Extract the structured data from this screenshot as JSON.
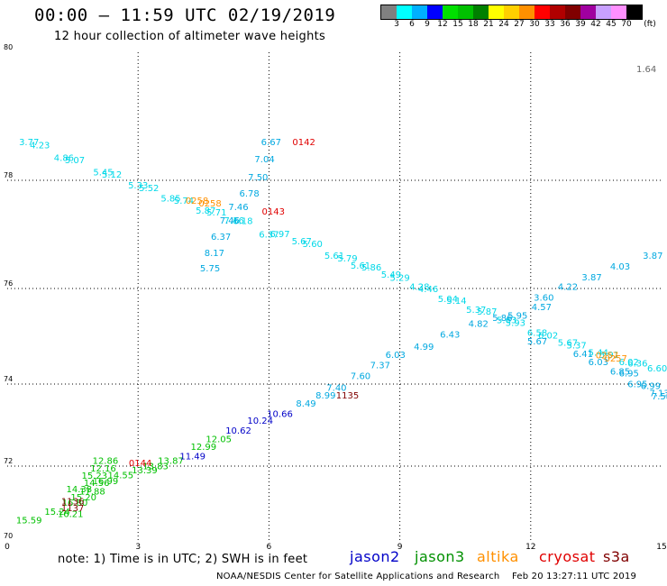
{
  "header": {
    "title": "00:00 – 11:59 UTC 02/19/2019",
    "subtitle": "12 hour collection of altimeter wave heights"
  },
  "legend": {
    "unit": "(ft)",
    "colors": [
      "#808080",
      "#00ffff",
      "#00b0ff",
      "#0000ff",
      "#00e000",
      "#00c000",
      "#008000",
      "#ffff00",
      "#ffd000",
      "#ff9000",
      "#ff0000",
      "#b00000",
      "#800000",
      "#a000a0",
      "#c8a0ff",
      "#ff90ff",
      "#000000"
    ],
    "labels": [
      "3",
      "6",
      "9",
      "12",
      "15",
      "18",
      "21",
      "24",
      "27",
      "30",
      "33",
      "36",
      "39",
      "42",
      "45",
      "70"
    ]
  },
  "corner_value": "1.64",
  "chart_data": {
    "type": "scatter",
    "title": "12 hour collection of altimeter wave heights",
    "xlabel": "",
    "ylabel": "",
    "xlim": [
      0,
      15
    ],
    "ylim": [
      70,
      80
    ],
    "x_ticks": [
      "0",
      "3",
      "6",
      "9",
      "12",
      "15"
    ],
    "y_ticks": [
      "70",
      "72",
      "74",
      "76",
      "78",
      "80"
    ],
    "grid": true,
    "satellites": [
      {
        "name": "jason2",
        "color": "#0000c8"
      },
      {
        "name": "jason3",
        "color": "#009000"
      },
      {
        "name": "altika",
        "color": "#ff9000"
      },
      {
        "name": "cryosat",
        "color": "#e00000"
      },
      {
        "name": "s3a",
        "color": "#800000"
      }
    ],
    "wave_labels": [
      {
        "x": 0.5,
        "y": 78.55,
        "text": "3.77",
        "color": "#00d8e8"
      },
      {
        "x": 0.75,
        "y": 78.5,
        "text": "4.23",
        "color": "#00d8e8"
      },
      {
        "x": 1.3,
        "y": 78.3,
        "text": "4.86",
        "color": "#00d8e8"
      },
      {
        "x": 1.55,
        "y": 78.27,
        "text": "5.07",
        "color": "#00d8e8"
      },
      {
        "x": 2.2,
        "y": 78.08,
        "text": "5.45",
        "color": "#00d8e8"
      },
      {
        "x": 2.4,
        "y": 78.04,
        "text": "5.12",
        "color": "#00d8e8"
      },
      {
        "x": 3.0,
        "y": 77.85,
        "text": "5.33",
        "color": "#00d8e8"
      },
      {
        "x": 3.25,
        "y": 77.8,
        "text": "5.52",
        "color": "#00d8e8"
      },
      {
        "x": 3.75,
        "y": 77.61,
        "text": "5.85",
        "color": "#00d8e8"
      },
      {
        "x": 4.05,
        "y": 77.57,
        "text": "5.74",
        "color": "#00d8e8"
      },
      {
        "x": 4.55,
        "y": 77.38,
        "text": "5.87",
        "color": "#00d8e8"
      },
      {
        "x": 4.8,
        "y": 77.35,
        "text": "5.71",
        "color": "#00d8e8"
      },
      {
        "x": 5.2,
        "y": 77.2,
        "text": "7.16",
        "color": "#00d8e8"
      },
      {
        "x": 5.4,
        "y": 77.19,
        "text": "6.18",
        "color": "#00d8e8"
      },
      {
        "x": 6.0,
        "y": 76.94,
        "text": "6.37",
        "color": "#00d8e8"
      },
      {
        "x": 6.25,
        "y": 76.95,
        "text": "6.97",
        "color": "#00d8e8"
      },
      {
        "x": 6.75,
        "y": 76.82,
        "text": "5.67",
        "color": "#00d8e8"
      },
      {
        "x": 7.0,
        "y": 76.77,
        "text": "5.60",
        "color": "#00d8e8"
      },
      {
        "x": 7.5,
        "y": 76.55,
        "text": "5.61",
        "color": "#00d8e8"
      },
      {
        "x": 7.8,
        "y": 76.5,
        "text": "5.79",
        "color": "#00d8e8"
      },
      {
        "x": 8.1,
        "y": 76.37,
        "text": "5.61",
        "color": "#00d8e8"
      },
      {
        "x": 8.35,
        "y": 76.33,
        "text": "5.86",
        "color": "#00d8e8"
      },
      {
        "x": 8.8,
        "y": 76.2,
        "text": "5.49",
        "color": "#00d8e8"
      },
      {
        "x": 9.0,
        "y": 76.14,
        "text": "5.29",
        "color": "#00d8e8"
      },
      {
        "x": 9.45,
        "y": 75.97,
        "text": "4.28",
        "color": "#00d8e8"
      },
      {
        "x": 9.65,
        "y": 75.92,
        "text": "4.46",
        "color": "#00d8e8"
      },
      {
        "x": 10.1,
        "y": 75.72,
        "text": "5.04",
        "color": "#00d8e8"
      },
      {
        "x": 10.3,
        "y": 75.68,
        "text": "5.14",
        "color": "#00d8e8"
      },
      {
        "x": 10.75,
        "y": 75.49,
        "text": "5.37",
        "color": "#00d8e8"
      },
      {
        "x": 11.0,
        "y": 75.45,
        "text": "5.87",
        "color": "#00d8e8"
      },
      {
        "x": 11.45,
        "y": 75.27,
        "text": "5.63",
        "color": "#00d8e8"
      },
      {
        "x": 11.65,
        "y": 75.22,
        "text": "5.93",
        "color": "#00d8e8"
      },
      {
        "x": 12.15,
        "y": 75.01,
        "text": "6.58",
        "color": "#00d8e8"
      },
      {
        "x": 12.4,
        "y": 74.95,
        "text": "6.02",
        "color": "#00d8e8"
      },
      {
        "x": 12.85,
        "y": 74.8,
        "text": "5.67",
        "color": "#00d8e8"
      },
      {
        "x": 13.05,
        "y": 74.75,
        "text": "5.37",
        "color": "#00d8e8"
      },
      {
        "x": 13.55,
        "y": 74.59,
        "text": "5.44",
        "color": "#00d8e8"
      },
      {
        "x": 13.8,
        "y": 74.55,
        "text": "5.91",
        "color": "#00d8e8"
      },
      {
        "x": 14.25,
        "y": 74.4,
        "text": "6.02",
        "color": "#00d8e8"
      },
      {
        "x": 14.45,
        "y": 74.37,
        "text": "6.36",
        "color": "#00d8e8"
      },
      {
        "x": 14.9,
        "y": 74.26,
        "text": "6.60",
        "color": "#00d8e8"
      },
      {
        "x": 0.5,
        "y": 70.47,
        "text": "15.59",
        "color": "#00c000"
      },
      {
        "x": 1.15,
        "y": 70.7,
        "text": "15.24",
        "color": "#00c000"
      },
      {
        "x": 1.45,
        "y": 70.64,
        "text": "16.21",
        "color": "#00c000"
      },
      {
        "x": 1.55,
        "y": 70.94,
        "text": "16.80",
        "color": "#00c000"
      },
      {
        "x": 1.75,
        "y": 71.09,
        "text": "15.20",
        "color": "#00c000"
      },
      {
        "x": 1.65,
        "y": 71.3,
        "text": "14.38",
        "color": "#00c000"
      },
      {
        "x": 1.95,
        "y": 71.24,
        "text": "17.88",
        "color": "#00c000"
      },
      {
        "x": 2.05,
        "y": 71.47,
        "text": "14.56",
        "color": "#00c000"
      },
      {
        "x": 2.25,
        "y": 71.52,
        "text": "16.99",
        "color": "#00c000"
      },
      {
        "x": 2.0,
        "y": 71.66,
        "text": "15.23",
        "color": "#00c000"
      },
      {
        "x": 2.2,
        "y": 71.86,
        "text": "12.16",
        "color": "#00c000"
      },
      {
        "x": 2.25,
        "y": 72.05,
        "text": "12.86",
        "color": "#00c000"
      },
      {
        "x": 2.6,
        "y": 71.67,
        "text": "14.55",
        "color": "#00c000"
      },
      {
        "x": 3.15,
        "y": 71.81,
        "text": "13.39",
        "color": "#00c000"
      },
      {
        "x": 3.4,
        "y": 71.92,
        "text": "13.83",
        "color": "#00c000"
      },
      {
        "x": 3.75,
        "y": 72.06,
        "text": "13.87",
        "color": "#00c000"
      },
      {
        "x": 4.5,
        "y": 72.4,
        "text": "12.99",
        "color": "#00c000"
      },
      {
        "x": 4.85,
        "y": 72.58,
        "text": "12.05",
        "color": "#00c000"
      },
      {
        "x": 4.25,
        "y": 72.16,
        "text": "11.49",
        "color": "#0000c8"
      },
      {
        "x": 5.3,
        "y": 72.79,
        "text": "10.62",
        "color": "#0000c8"
      },
      {
        "x": 5.8,
        "y": 73.03,
        "text": "10.24",
        "color": "#0000c8"
      },
      {
        "x": 6.25,
        "y": 73.2,
        "text": "10.66",
        "color": "#0000c8"
      },
      {
        "x": 6.85,
        "y": 73.45,
        "text": "8.49",
        "color": "#00a8e0"
      },
      {
        "x": 7.3,
        "y": 73.65,
        "text": "8.99",
        "color": "#00a8e0"
      },
      {
        "x": 7.55,
        "y": 73.84,
        "text": "7.40",
        "color": "#00a8e0"
      },
      {
        "x": 8.1,
        "y": 74.1,
        "text": "7.60",
        "color": "#00a8e0"
      },
      {
        "x": 8.55,
        "y": 74.33,
        "text": "7.37",
        "color": "#00a8e0"
      },
      {
        "x": 8.9,
        "y": 74.55,
        "text": "6.03",
        "color": "#00a8e0"
      },
      {
        "x": 9.55,
        "y": 74.72,
        "text": "4.99",
        "color": "#00a8e0"
      },
      {
        "x": 10.15,
        "y": 74.97,
        "text": "6.43",
        "color": "#00a8e0"
      },
      {
        "x": 10.8,
        "y": 75.2,
        "text": "4.82",
        "color": "#00a8e0"
      },
      {
        "x": 11.35,
        "y": 75.32,
        "text": "5.86",
        "color": "#00a8e0"
      },
      {
        "x": 11.7,
        "y": 75.37,
        "text": "5.95",
        "color": "#00a8e0"
      },
      {
        "x": 12.25,
        "y": 75.55,
        "text": "4.57",
        "color": "#00a8e0"
      },
      {
        "x": 12.3,
        "y": 75.75,
        "text": "3.60",
        "color": "#00a8e0"
      },
      {
        "x": 12.85,
        "y": 75.97,
        "text": "4.22",
        "color": "#00a8e0"
      },
      {
        "x": 13.4,
        "y": 76.15,
        "text": "3.87",
        "color": "#00a8e0"
      },
      {
        "x": 14.05,
        "y": 76.35,
        "text": "4.03",
        "color": "#00a8e0"
      },
      {
        "x": 14.8,
        "y": 76.55,
        "text": "3.87",
        "color": "#00a8e0"
      },
      {
        "x": 12.15,
        "y": 74.83,
        "text": "5.67",
        "color": "#00a8e0"
      },
      {
        "x": 13.2,
        "y": 74.57,
        "text": "6.41",
        "color": "#00a8e0"
      },
      {
        "x": 13.55,
        "y": 74.4,
        "text": "6.03",
        "color": "#00a8e0"
      },
      {
        "x": 14.05,
        "y": 74.2,
        "text": "6.85",
        "color": "#00a8e0"
      },
      {
        "x": 14.25,
        "y": 74.16,
        "text": "6.95",
        "color": "#00a8e0"
      },
      {
        "x": 14.45,
        "y": 73.92,
        "text": "6.95",
        "color": "#00a8e0"
      },
      {
        "x": 14.75,
        "y": 73.88,
        "text": "6.99",
        "color": "#00a8e0"
      },
      {
        "x": 14.95,
        "y": 73.7,
        "text": "7.13",
        "color": "#00a8e0"
      },
      {
        "x": 15.0,
        "y": 73.63,
        "text": "7.58",
        "color": "#00a8e0"
      },
      {
        "x": 6.05,
        "y": 78.55,
        "text": "6.67",
        "color": "#00a8e0"
      },
      {
        "x": 5.9,
        "y": 78.28,
        "text": "7.04",
        "color": "#00a8e0"
      },
      {
        "x": 5.75,
        "y": 78.0,
        "text": "7.50",
        "color": "#00a8e0"
      },
      {
        "x": 5.55,
        "y": 77.7,
        "text": "6.78",
        "color": "#00a8e0"
      },
      {
        "x": 5.3,
        "y": 77.45,
        "text": "7.46",
        "color": "#00a8e0"
      },
      {
        "x": 5.1,
        "y": 77.2,
        "text": "7.46",
        "color": "#00a8e0"
      },
      {
        "x": 4.9,
        "y": 76.9,
        "text": "6.37",
        "color": "#00a8e0"
      },
      {
        "x": 4.75,
        "y": 76.6,
        "text": "8.17",
        "color": "#00a8e0"
      },
      {
        "x": 4.65,
        "y": 76.32,
        "text": "5.75",
        "color": "#00a8e0"
      },
      {
        "x": 4.35,
        "y": 77.57,
        "text": "0258",
        "color": "#ff9000"
      },
      {
        "x": 4.65,
        "y": 77.52,
        "text": "0258",
        "color": "#ff9000"
      },
      {
        "x": 13.75,
        "y": 74.54,
        "text": "0257",
        "color": "#ff9000"
      },
      {
        "x": 13.95,
        "y": 74.47,
        "text": "0257",
        "color": "#ff9000"
      },
      {
        "x": 6.8,
        "y": 78.55,
        "text": "0142",
        "color": "#e00000"
      },
      {
        "x": 6.1,
        "y": 77.37,
        "text": "0143",
        "color": "#e00000"
      },
      {
        "x": 3.05,
        "y": 72.0,
        "text": "0144",
        "color": "#e00000"
      },
      {
        "x": 7.8,
        "y": 73.65,
        "text": "1135",
        "color": "#800000"
      },
      {
        "x": 1.5,
        "y": 70.98,
        "text": "1136",
        "color": "#800000"
      },
      {
        "x": 1.5,
        "y": 70.8,
        "text": "1137",
        "color": "#800000"
      }
    ]
  },
  "footer": {
    "note": "note:  1) Time is in UTC;  2) SWH is in feet",
    "credit": "NOAA/NESDIS Center for Satellite Applications and Research    Feb 20 13:27:11 UTC 2019"
  }
}
